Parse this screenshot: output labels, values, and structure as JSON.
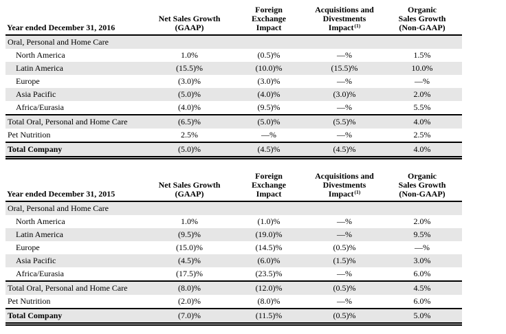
{
  "page": {
    "background": "#ffffff",
    "shade_color": "#e6e6e6",
    "rule_color": "#000000"
  },
  "tables": [
    {
      "year_label": "Year ended December 31, 2016",
      "columns": [
        {
          "lines": [
            "Net Sales Growth",
            "(GAAP)"
          ],
          "sup": ""
        },
        {
          "lines": [
            "Foreign",
            "Exchange",
            "Impact"
          ],
          "sup": ""
        },
        {
          "lines": [
            "Acquisitions and",
            "Divestments",
            "Impact"
          ],
          "sup": "(1)"
        },
        {
          "lines": [
            "Organic",
            "Sales Growth",
            "(Non-GAAP)"
          ],
          "sup": ""
        }
      ],
      "rows": [
        {
          "label": "Oral, Personal and Home Care",
          "indent": false,
          "bold": false,
          "shaded": true,
          "rule_above": false,
          "double_rule_below": false,
          "values": [
            "",
            "",
            "",
            ""
          ]
        },
        {
          "label": "North America",
          "indent": true,
          "bold": false,
          "shaded": false,
          "rule_above": false,
          "double_rule_below": false,
          "values": [
            "1.0%",
            "(0.5)%",
            "—%",
            "1.5%"
          ]
        },
        {
          "label": "Latin America",
          "indent": true,
          "bold": false,
          "shaded": true,
          "rule_above": false,
          "double_rule_below": false,
          "values": [
            "(15.5)%",
            "(10.0)%",
            "(15.5)%",
            "10.0%"
          ]
        },
        {
          "label": "Europe",
          "indent": true,
          "bold": false,
          "shaded": false,
          "rule_above": false,
          "double_rule_below": false,
          "values": [
            "(3.0)%",
            "(3.0)%",
            "—%",
            "—%"
          ]
        },
        {
          "label": "Asia Pacific",
          "indent": true,
          "bold": false,
          "shaded": true,
          "rule_above": false,
          "double_rule_below": false,
          "values": [
            "(5.0)%",
            "(4.0)%",
            "(3.0)%",
            "2.0%"
          ]
        },
        {
          "label": "Africa/Eurasia",
          "indent": true,
          "bold": false,
          "shaded": false,
          "rule_above": false,
          "double_rule_below": false,
          "values": [
            "(4.0)%",
            "(9.5)%",
            "—%",
            "5.5%"
          ]
        },
        {
          "label": "Total Oral, Personal and Home Care",
          "indent": false,
          "bold": false,
          "shaded": true,
          "rule_above": true,
          "double_rule_below": false,
          "values": [
            "(6.5)%",
            "(5.0)%",
            "(5.5)%",
            "4.0%"
          ]
        },
        {
          "label": "Pet Nutrition",
          "indent": false,
          "bold": false,
          "shaded": false,
          "rule_above": false,
          "double_rule_below": false,
          "values": [
            "2.5%",
            "—%",
            "—%",
            "2.5%"
          ]
        },
        {
          "label": "Total Company",
          "indent": false,
          "bold": true,
          "shaded": true,
          "rule_above": true,
          "double_rule_below": true,
          "values": [
            "(5.0)%",
            "(4.5)%",
            "(4.5)%",
            "4.0%"
          ]
        }
      ]
    },
    {
      "year_label": "Year ended December 31, 2015",
      "columns": [
        {
          "lines": [
            "Net Sales Growth",
            "(GAAP)"
          ],
          "sup": ""
        },
        {
          "lines": [
            "Foreign",
            "Exchange",
            "Impact"
          ],
          "sup": ""
        },
        {
          "lines": [
            "Acquisitions and",
            "Divestments",
            "Impact"
          ],
          "sup": "(1)"
        },
        {
          "lines": [
            "Organic",
            "Sales Growth",
            "(Non-GAAP)"
          ],
          "sup": ""
        }
      ],
      "rows": [
        {
          "label": "Oral, Personal and Home Care",
          "indent": false,
          "bold": false,
          "shaded": true,
          "rule_above": false,
          "double_rule_below": false,
          "values": [
            "",
            "",
            "",
            ""
          ]
        },
        {
          "label": "North America",
          "indent": true,
          "bold": false,
          "shaded": false,
          "rule_above": false,
          "double_rule_below": false,
          "values": [
            "1.0%",
            "(1.0)%",
            "—%",
            "2.0%"
          ]
        },
        {
          "label": "Latin America",
          "indent": true,
          "bold": false,
          "shaded": true,
          "rule_above": false,
          "double_rule_below": false,
          "values": [
            "(9.5)%",
            "(19.0)%",
            "—%",
            "9.5%"
          ]
        },
        {
          "label": "Europe",
          "indent": true,
          "bold": false,
          "shaded": false,
          "rule_above": false,
          "double_rule_below": false,
          "values": [
            "(15.0)%",
            "(14.5)%",
            "(0.5)%",
            "—%"
          ]
        },
        {
          "label": "Asia Pacific",
          "indent": true,
          "bold": false,
          "shaded": true,
          "rule_above": false,
          "double_rule_below": false,
          "values": [
            "(4.5)%",
            "(6.0)%",
            "(1.5)%",
            "3.0%"
          ]
        },
        {
          "label": "Africa/Eurasia",
          "indent": true,
          "bold": false,
          "shaded": false,
          "rule_above": false,
          "double_rule_below": false,
          "values": [
            "(17.5)%",
            "(23.5)%",
            "—%",
            "6.0%"
          ]
        },
        {
          "label": "Total Oral, Personal and Home Care",
          "indent": false,
          "bold": false,
          "shaded": true,
          "rule_above": true,
          "double_rule_below": false,
          "values": [
            "(8.0)%",
            "(12.0)%",
            "(0.5)%",
            "4.5%"
          ]
        },
        {
          "label": "Pet Nutrition",
          "indent": false,
          "bold": false,
          "shaded": false,
          "rule_above": false,
          "double_rule_below": false,
          "values": [
            "(2.0)%",
            "(8.0)%",
            "—%",
            "6.0%"
          ]
        },
        {
          "label": "Total Company",
          "indent": false,
          "bold": true,
          "shaded": true,
          "rule_above": true,
          "double_rule_below": true,
          "values": [
            "(7.0)%",
            "(11.5)%",
            "(0.5)%",
            "5.0%"
          ]
        }
      ]
    }
  ]
}
